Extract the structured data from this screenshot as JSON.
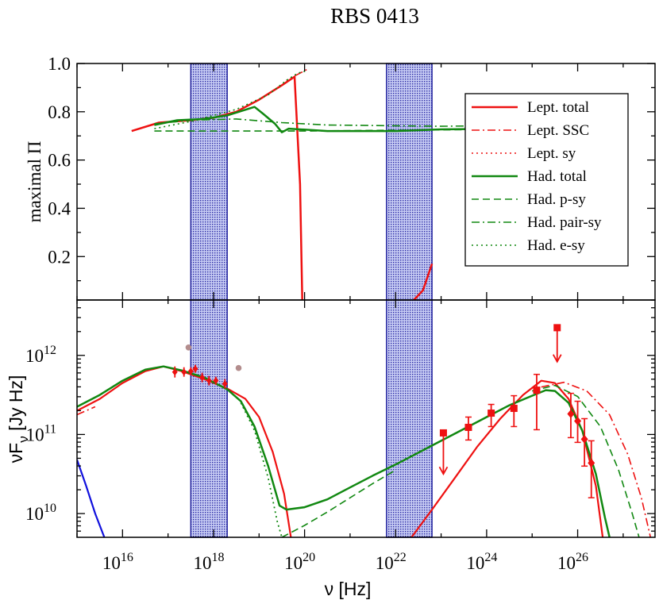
{
  "title": "RBS 0413",
  "colors": {
    "lept": "#ee1111",
    "had": "#118811",
    "band_fill": "#aab4ea",
    "band_line": "#1a1a9a",
    "blue": "#1010dd",
    "ghost": "#b38d8d"
  },
  "chart_data": [
    {
      "name": "polarization",
      "type": "line",
      "xscale": "log10",
      "xlim": [
        15,
        27.7
      ],
      "ylim": [
        0.02,
        1.0
      ],
      "ylabel": "maximal Π",
      "yticks": [
        {
          "v": 0.2,
          "label": "0.2"
        },
        {
          "v": 0.4,
          "label": "0.4"
        },
        {
          "v": 0.6,
          "label": "0.6"
        },
        {
          "v": 0.8,
          "label": "0.8"
        },
        {
          "v": 1.0,
          "label": "1.0"
        }
      ],
      "bands_log_hz": [
        [
          17.5,
          18.3
        ],
        [
          21.8,
          22.8
        ]
      ],
      "legend": {
        "placement": "right",
        "entries": [
          {
            "label": "Lept. total",
            "series": "lept_total"
          },
          {
            "label": "Lept. SSC",
            "series": "lept_ssc"
          },
          {
            "label": "Lept. sy",
            "series": "lept_sy"
          },
          {
            "label": "Had. total",
            "series": "had_total"
          },
          {
            "label": "Had. p-sy",
            "series": "had_psy"
          },
          {
            "label": "Had. pair-sy",
            "series": "had_pairsy"
          },
          {
            "label": "Had. e-sy",
            "series": "had_esy"
          }
        ]
      },
      "series": [
        {
          "id": "lept_total",
          "name": "Lept. total",
          "color": "lept",
          "style": "solid",
          "width": 2.5,
          "segments": [
            [
              [
                16.2,
                0.72
              ],
              [
                16.8,
                0.755
              ],
              [
                17.5,
                0.765
              ],
              [
                18.0,
                0.775
              ],
              [
                18.5,
                0.8
              ],
              [
                19.0,
                0.85
              ],
              [
                19.5,
                0.91
              ],
              [
                19.78,
                0.945
              ],
              [
                19.9,
                0.5
              ],
              [
                19.95,
                0.02
              ]
            ],
            [
              [
                22.4,
                0.02
              ],
              [
                22.6,
                0.06
              ],
              [
                22.8,
                0.17
              ]
            ]
          ]
        },
        {
          "id": "lept_ssc",
          "name": "Lept. SSC",
          "color": "lept",
          "style": "dashdot",
          "width": 1.6,
          "segments": [
            [
              [
                19.8,
                0.95
              ],
              [
                20.1,
                0.98
              ]
            ]
          ]
        },
        {
          "id": "lept_sy",
          "name": "Lept. sy",
          "color": "lept",
          "style": "dotted",
          "width": 1.6,
          "segments": [
            [
              [
                19.6,
                0.93
              ],
              [
                19.8,
                0.95
              ]
            ]
          ]
        },
        {
          "id": "had_total",
          "name": "Had. total",
          "color": "had",
          "style": "solid",
          "width": 2.5,
          "segments": [
            [
              [
                16.7,
                0.745
              ],
              [
                17.2,
                0.765
              ],
              [
                17.8,
                0.77
              ],
              [
                18.3,
                0.785
              ],
              [
                18.9,
                0.82
              ],
              [
                19.1,
                0.79
              ],
              [
                19.35,
                0.75
              ],
              [
                19.5,
                0.715
              ],
              [
                19.65,
                0.73
              ],
              [
                20.5,
                0.72
              ],
              [
                22.0,
                0.72
              ],
              [
                23.0,
                0.727
              ],
              [
                24.5,
                0.73
              ],
              [
                25.4,
                0.73
              ]
            ]
          ]
        },
        {
          "id": "had_psy",
          "name": "Had. p-sy",
          "color": "had",
          "style": "dashed",
          "width": 1.6,
          "segments": [
            [
              [
                16.7,
                0.72
              ],
              [
                18.0,
                0.72
              ],
              [
                20.0,
                0.72
              ],
              [
                23.0,
                0.725
              ],
              [
                25.4,
                0.728
              ]
            ]
          ]
        },
        {
          "id": "had_pairsy",
          "name": "Had. pair-sy",
          "color": "had",
          "style": "dashdot",
          "width": 1.6,
          "segments": [
            [
              [
                16.7,
                0.75
              ],
              [
                17.5,
                0.765
              ],
              [
                18.5,
                0.77
              ],
              [
                19.5,
                0.755
              ],
              [
                20.5,
                0.745
              ],
              [
                23.0,
                0.74
              ],
              [
                25.4,
                0.745
              ]
            ]
          ]
        },
        {
          "id": "had_esy",
          "name": "Had. e-sy",
          "color": "had",
          "style": "dotted",
          "width": 1.6,
          "segments": [
            [
              [
                16.7,
                0.73
              ],
              [
                17.5,
                0.76
              ],
              [
                18.5,
                0.81
              ],
              [
                19.2,
                0.87
              ],
              [
                19.6,
                0.93
              ],
              [
                19.85,
                0.96
              ],
              [
                20.05,
                0.97
              ]
            ]
          ]
        }
      ]
    },
    {
      "name": "sed",
      "type": "line",
      "xscale": "log10",
      "yscale": "log10",
      "xlim": [
        15,
        27.7
      ],
      "ylim": [
        9.7,
        12.7
      ],
      "xlabel": "ν [Hz]",
      "ylabel": "νF_ν [Jy Hz]",
      "ylabel_main": "νF",
      "ylabel_sub": "ν",
      "ylabel_rest": " [Jy Hz]",
      "xticks": [
        {
          "v": 16,
          "base": "10",
          "exp": "16"
        },
        {
          "v": 18,
          "base": "10",
          "exp": "18"
        },
        {
          "v": 20,
          "base": "10",
          "exp": "20"
        },
        {
          "v": 22,
          "base": "10",
          "exp": "22"
        },
        {
          "v": 24,
          "base": "10",
          "exp": "24"
        },
        {
          "v": 26,
          "base": "10",
          "exp": "26"
        }
      ],
      "yticks": [
        {
          "v": 10,
          "base": "10",
          "exp": "10"
        },
        {
          "v": 11,
          "base": "10",
          "exp": "11"
        },
        {
          "v": 12,
          "base": "10",
          "exp": "12"
        }
      ],
      "bands_log_hz": [
        [
          17.5,
          18.3
        ],
        [
          21.8,
          22.8
        ]
      ],
      "series": [
        {
          "id": "lept_total",
          "color": "lept",
          "style": "solid",
          "width": 2.2,
          "segments": [
            [
              [
                15.0,
                11.3
              ],
              [
                15.5,
                11.45
              ],
              [
                16.0,
                11.65
              ],
              [
                16.5,
                11.8
              ],
              [
                16.9,
                11.86
              ],
              [
                17.3,
                11.8
              ],
              [
                17.8,
                11.7
              ],
              [
                18.3,
                11.58
              ],
              [
                18.7,
                11.45
              ],
              [
                19.0,
                11.22
              ],
              [
                19.3,
                10.78
              ],
              [
                19.55,
                10.25
              ],
              [
                19.7,
                9.7
              ]
            ],
            [
              [
                22.35,
                9.7
              ],
              [
                22.8,
                10.05
              ],
              [
                23.3,
                10.45
              ],
              [
                23.8,
                10.85
              ],
              [
                24.3,
                11.2
              ],
              [
                24.8,
                11.5
              ],
              [
                25.2,
                11.68
              ],
              [
                25.5,
                11.65
              ],
              [
                25.8,
                11.45
              ],
              [
                26.1,
                11.05
              ],
              [
                26.4,
                10.35
              ],
              [
                26.55,
                9.7
              ]
            ]
          ]
        },
        {
          "id": "lept_ssc",
          "color": "lept",
          "style": "dashdot",
          "width": 1.6,
          "segments": [
            [
              [
                15.0,
                11.25
              ],
              [
                15.4,
                11.35
              ]
            ],
            [
              [
                25.2,
                11.6
              ],
              [
                25.7,
                11.66
              ],
              [
                26.2,
                11.55
              ],
              [
                26.7,
                11.25
              ],
              [
                27.1,
                10.75
              ],
              [
                27.4,
                10.2
              ],
              [
                27.6,
                9.7
              ]
            ]
          ]
        },
        {
          "id": "had_total",
          "color": "had",
          "style": "solid",
          "width": 2.5,
          "segments": [
            [
              [
                15.0,
                11.35
              ],
              [
                15.5,
                11.5
              ],
              [
                16.0,
                11.68
              ],
              [
                16.5,
                11.82
              ],
              [
                16.9,
                11.86
              ],
              [
                17.3,
                11.81
              ],
              [
                17.8,
                11.72
              ],
              [
                18.3,
                11.57
              ],
              [
                18.6,
                11.42
              ],
              [
                18.9,
                11.1
              ],
              [
                19.2,
                10.6
              ],
              [
                19.45,
                10.1
              ],
              [
                19.6,
                10.05
              ],
              [
                20.0,
                10.08
              ],
              [
                20.5,
                10.18
              ],
              [
                21.0,
                10.33
              ],
              [
                21.5,
                10.48
              ],
              [
                22.0,
                10.62
              ],
              [
                22.5,
                10.77
              ],
              [
                23.0,
                10.92
              ],
              [
                23.5,
                11.07
              ],
              [
                24.0,
                11.22
              ],
              [
                24.5,
                11.37
              ],
              [
                25.0,
                11.49
              ],
              [
                25.3,
                11.56
              ],
              [
                25.5,
                11.55
              ],
              [
                25.8,
                11.4
              ],
              [
                26.1,
                11.05
              ],
              [
                26.4,
                10.5
              ],
              [
                26.6,
                9.95
              ],
              [
                26.7,
                9.7
              ]
            ]
          ]
        },
        {
          "id": "had_psy",
          "color": "had",
          "style": "dashed",
          "width": 1.6,
          "segments": [
            [
              [
                19.5,
                9.7
              ],
              [
                20.0,
                9.85
              ],
              [
                20.5,
                10.02
              ],
              [
                21.0,
                10.2
              ],
              [
                21.5,
                10.38
              ],
              [
                22.0,
                10.55
              ]
            ],
            [
              [
                25.0,
                11.55
              ],
              [
                25.5,
                11.62
              ],
              [
                26.0,
                11.48
              ],
              [
                26.5,
                11.1
              ],
              [
                26.9,
                10.55
              ],
              [
                27.2,
                10.0
              ],
              [
                27.35,
                9.7
              ]
            ]
          ]
        },
        {
          "id": "had_esy",
          "color": "had",
          "style": "dotted",
          "width": 1.8,
          "segments": [
            [
              [
                18.6,
                11.4
              ],
              [
                18.9,
                11.05
              ],
              [
                19.2,
                10.45
              ],
              [
                19.4,
                9.9
              ],
              [
                19.5,
                9.7
              ]
            ]
          ]
        },
        {
          "id": "low_freq",
          "color": "blue",
          "style": "solid",
          "width": 2.2,
          "segments": [
            [
              [
                15.0,
                10.68
              ],
              [
                15.2,
                10.35
              ],
              [
                15.4,
                10.0
              ],
              [
                15.6,
                9.7
              ]
            ]
          ]
        }
      ],
      "observations": [
        {
          "x": 17.15,
          "y": 11.79,
          "err": 0.07,
          "shape": "diamond",
          "size": 7
        },
        {
          "x": 17.35,
          "y": 11.79,
          "err": 0.06,
          "shape": "diamond",
          "size": 7
        },
        {
          "x": 17.5,
          "y": 11.8,
          "err": 0.05,
          "shape": "diamond",
          "size": 7
        },
        {
          "x": 17.6,
          "y": 11.83,
          "err": 0.05,
          "shape": "diamond",
          "size": 7
        },
        {
          "x": 17.75,
          "y": 11.72,
          "err": 0.06,
          "shape": "diamond",
          "size": 7
        },
        {
          "x": 17.9,
          "y": 11.68,
          "err": 0.06,
          "shape": "diamond",
          "size": 7
        },
        {
          "x": 18.05,
          "y": 11.68,
          "err": 0.05,
          "shape": "diamond",
          "size": 7
        },
        {
          "x": 18.25,
          "y": 11.64,
          "err": 0.06,
          "shape": "diamond",
          "size": 7
        },
        {
          "x": 23.05,
          "y": 11.02,
          "up": 11.02,
          "down": 10.5,
          "upper_limit": true,
          "shape": "square",
          "size": 9
        },
        {
          "x": 23.6,
          "y": 11.09,
          "up": 11.22,
          "down": 10.93,
          "shape": "square",
          "size": 9
        },
        {
          "x": 24.1,
          "y": 11.27,
          "up": 11.38,
          "down": 11.1,
          "shape": "square",
          "size": 9
        },
        {
          "x": 24.6,
          "y": 11.33,
          "up": 11.49,
          "down": 11.1,
          "shape": "square",
          "size": 9
        },
        {
          "x": 25.1,
          "y": 11.56,
          "up": 11.76,
          "down": 11.06,
          "shape": "square",
          "size": 9
        },
        {
          "x": 25.55,
          "y": 12.35,
          "up": 12.35,
          "down": 11.92,
          "upper_limit": true,
          "shape": "square",
          "size": 9
        },
        {
          "x": 25.85,
          "y": 11.26,
          "up": 11.52,
          "down": 10.96,
          "shape": "diamond",
          "size": 9
        },
        {
          "x": 26.0,
          "y": 11.17,
          "up": 11.42,
          "down": 10.9,
          "shape": "diamond",
          "size": 9
        },
        {
          "x": 26.15,
          "y": 10.94,
          "up": 11.2,
          "down": 10.6,
          "shape": "diamond",
          "size": 9
        },
        {
          "x": 26.3,
          "y": 10.64,
          "up": 10.92,
          "down": 10.2,
          "shape": "diamond",
          "size": 9
        }
      ],
      "ghost_points": [
        {
          "x": 17.45,
          "y": 12.1
        },
        {
          "x": 18.55,
          "y": 11.84
        }
      ]
    }
  ]
}
